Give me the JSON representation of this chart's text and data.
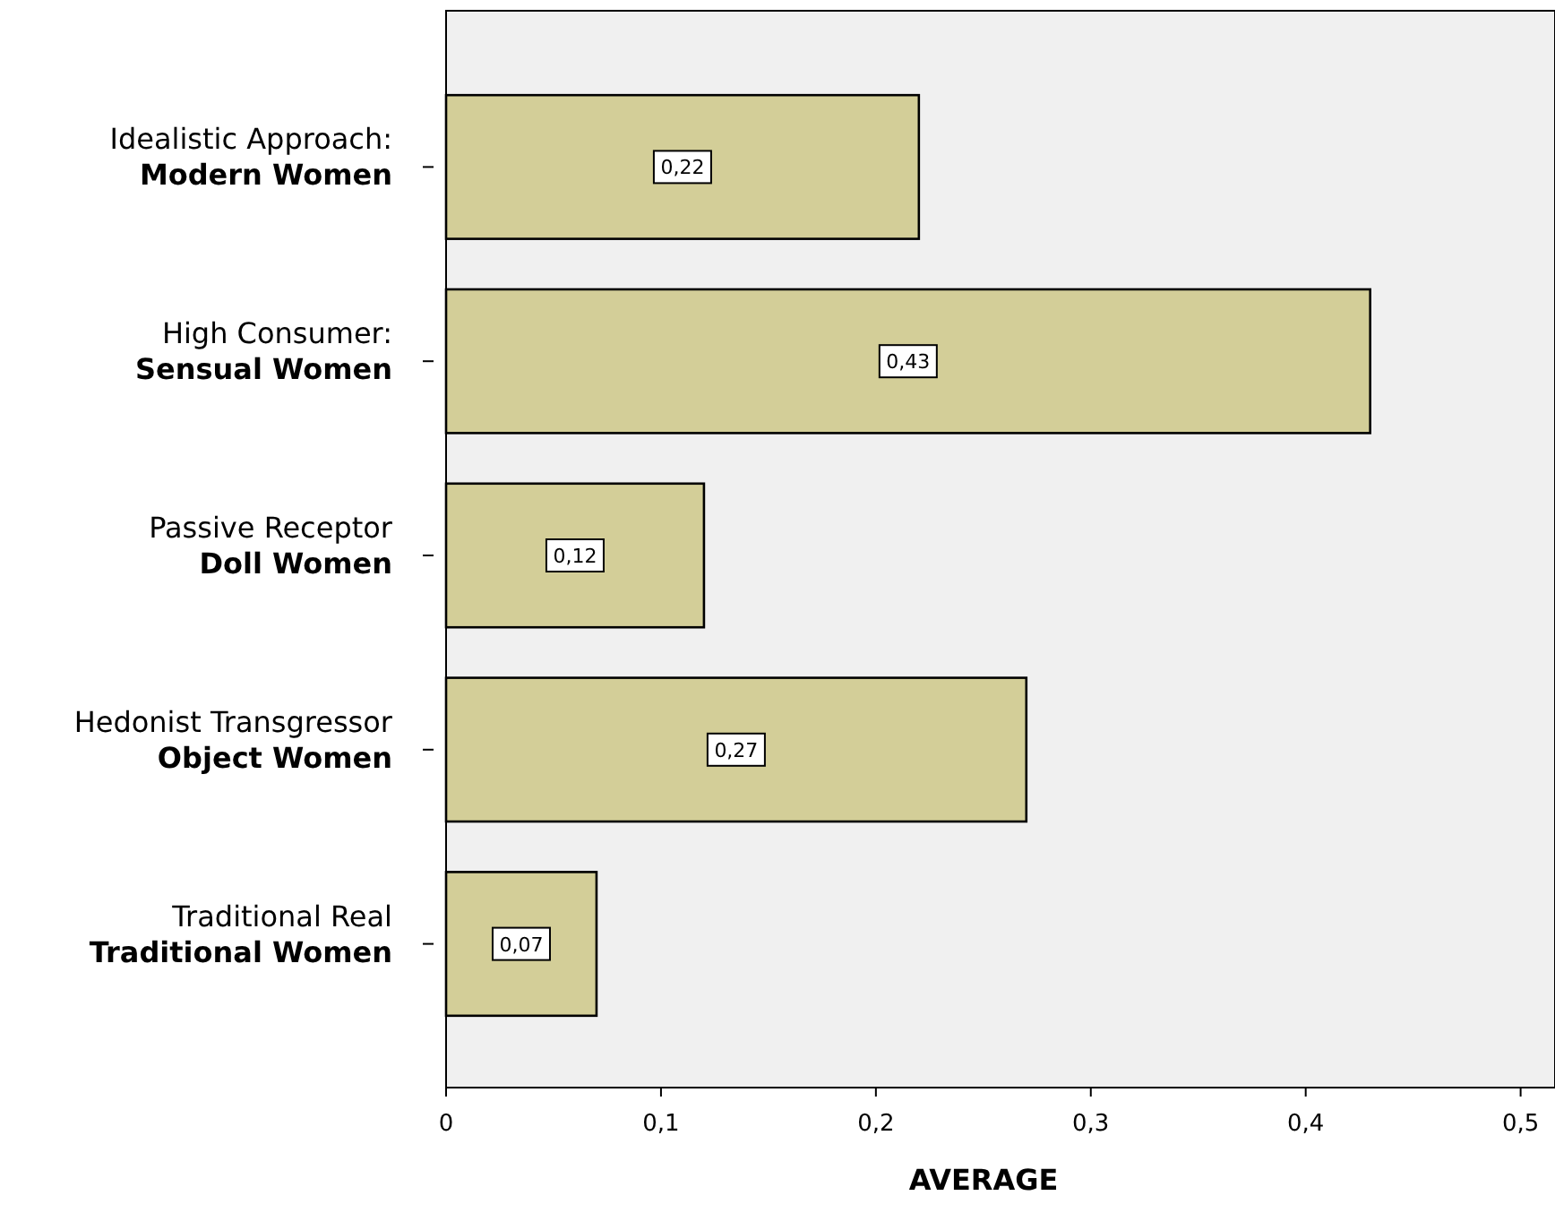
{
  "chart_data": {
    "type": "bar",
    "orientation": "horizontal",
    "xlabel": "AVERAGE",
    "categories": [
      "Idealistic Approach:\nModern Women",
      "High Consumer:\nSensual Women",
      "Passive Receptor\nDoll Women",
      "Hedonist Transgressor\nObject Women",
      "Traditional Real\nTraditional Women"
    ],
    "values": [
      0.22,
      0.43,
      0.12,
      0.27,
      0.07
    ],
    "color": "#d3ce98",
    "value_labels": [
      "0,22",
      "0,43",
      "0,12",
      "0,27",
      "0,07"
    ],
    "xlim": [
      0,
      0.516
    ],
    "xticks": [
      {
        "value": 0,
        "label": "0"
      },
      {
        "value": 0.1,
        "label": "0,1"
      },
      {
        "value": 0.2,
        "label": "0,2"
      },
      {
        "value": 0.3,
        "label": "0,3"
      },
      {
        "value": 0.4,
        "label": "0,4"
      },
      {
        "value": 0.5,
        "label": "0,5"
      }
    ],
    "grid": false
  }
}
